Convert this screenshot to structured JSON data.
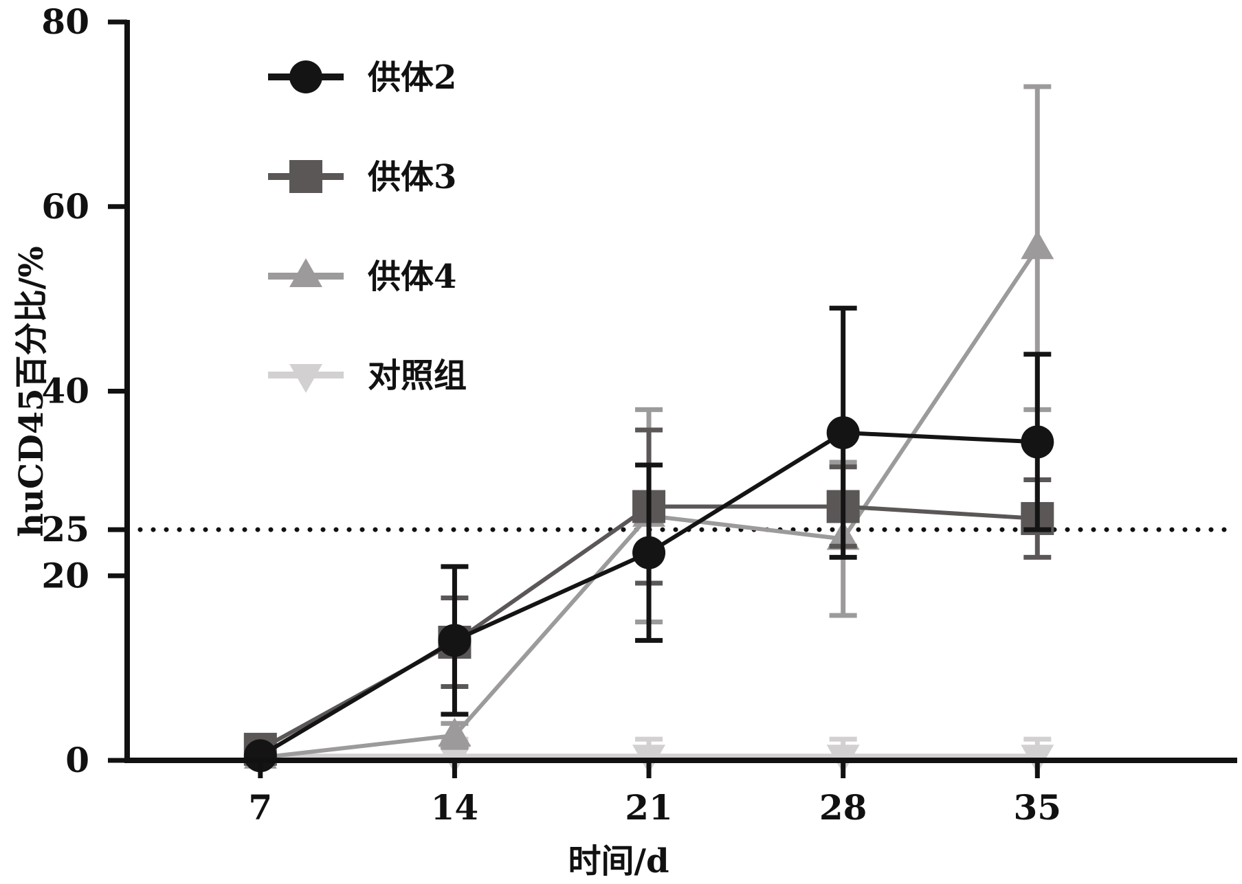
{
  "chart_data": {
    "type": "line",
    "xlabel": "时间/d",
    "ylabel": "huCD45百分比/%",
    "x": [
      7,
      14,
      21,
      28,
      35
    ],
    "xlim": [
      2.2,
      42.2
    ],
    "ylim": [
      0,
      80
    ],
    "yticks": [
      0,
      20,
      25,
      40,
      60,
      80
    ],
    "reference_line": {
      "y": 25,
      "style": "dotted"
    },
    "grid": false,
    "legend_position": "top-left",
    "series": [
      {
        "name": "供体2",
        "marker": "circle",
        "color": "#141414",
        "values": [
          0.5,
          13,
          22.5,
          35.5,
          34.5
        ],
        "error": [
          0.3,
          8,
          9.5,
          13.5,
          9.5
        ]
      },
      {
        "name": "供体3",
        "marker": "square",
        "color": "#5b5757",
        "values": [
          1.2,
          12.8,
          27.5,
          27.5,
          26.2
        ],
        "error": [
          0.3,
          4.8,
          8.3,
          4.3,
          4.2
        ]
      },
      {
        "name": "供体4",
        "marker": "triangle-up",
        "color": "#9c9a9a",
        "values": [
          0.3,
          2.7,
          26.5,
          24,
          55.5
        ],
        "error": [
          0.3,
          1.3,
          11.5,
          8.3,
          17.5
        ]
      },
      {
        "name": "对照组",
        "marker": "triangle-down",
        "color": "#d2d0d0",
        "values": [
          0.5,
          0.5,
          0.5,
          0.5,
          0.5
        ],
        "error": [
          0,
          1.8,
          1.8,
          1.8,
          1.8
        ]
      }
    ]
  }
}
